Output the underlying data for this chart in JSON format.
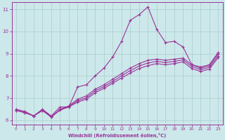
{
  "xlabel": "Windchill (Refroidissement éolien,°C)",
  "bg_color": "#cce8ea",
  "line_color": "#993399",
  "grid_color": "#aacccc",
  "xlim": [
    -0.5,
    23.5
  ],
  "ylim": [
    5.8,
    11.3
  ],
  "xticks": [
    0,
    1,
    2,
    3,
    4,
    5,
    6,
    7,
    8,
    9,
    10,
    11,
    12,
    13,
    14,
    15,
    16,
    17,
    18,
    19,
    20,
    21,
    22,
    23
  ],
  "yticks": [
    6,
    7,
    8,
    9,
    10,
    11
  ],
  "series1_x": [
    0,
    1,
    2,
    3,
    4,
    5,
    6,
    7,
    8,
    9,
    10,
    11,
    12,
    13,
    14,
    15,
    16,
    17,
    18,
    19,
    20,
    21,
    22,
    23
  ],
  "series1_y": [
    6.5,
    6.4,
    6.2,
    6.5,
    6.2,
    6.6,
    6.6,
    7.5,
    7.6,
    8.0,
    8.35,
    8.85,
    9.55,
    10.5,
    10.75,
    11.1,
    10.1,
    9.5,
    9.55,
    9.3,
    8.5,
    8.4,
    8.5,
    9.05
  ],
  "series2_x": [
    0,
    1,
    2,
    3,
    4,
    5,
    6,
    7,
    8,
    9,
    10,
    11,
    12,
    13,
    14,
    15,
    16,
    17,
    18,
    19,
    20,
    21,
    22,
    23
  ],
  "series2_y": [
    6.45,
    6.35,
    6.2,
    6.45,
    6.15,
    6.5,
    6.65,
    6.95,
    7.1,
    7.4,
    7.6,
    7.85,
    8.1,
    8.35,
    8.55,
    8.7,
    8.75,
    8.7,
    8.75,
    8.8,
    8.5,
    8.35,
    8.45,
    9.0
  ],
  "series3_x": [
    0,
    1,
    2,
    3,
    4,
    5,
    6,
    7,
    8,
    9,
    10,
    11,
    12,
    13,
    14,
    15,
    16,
    17,
    18,
    19,
    20,
    21,
    22,
    23
  ],
  "series3_y": [
    6.45,
    6.35,
    6.2,
    6.45,
    6.15,
    6.48,
    6.62,
    6.88,
    7.02,
    7.32,
    7.52,
    7.75,
    8.0,
    8.24,
    8.44,
    8.58,
    8.65,
    8.6,
    8.65,
    8.72,
    8.42,
    8.28,
    8.38,
    8.9
  ],
  "series4_x": [
    0,
    1,
    2,
    3,
    4,
    5,
    6,
    7,
    8,
    9,
    10,
    11,
    12,
    13,
    14,
    15,
    16,
    17,
    18,
    19,
    20,
    21,
    22,
    23
  ],
  "series4_y": [
    6.45,
    6.35,
    6.2,
    6.45,
    6.15,
    6.46,
    6.6,
    6.82,
    6.95,
    7.24,
    7.44,
    7.67,
    7.9,
    8.13,
    8.33,
    8.46,
    8.55,
    8.5,
    8.55,
    8.63,
    8.33,
    8.2,
    8.3,
    8.82
  ]
}
